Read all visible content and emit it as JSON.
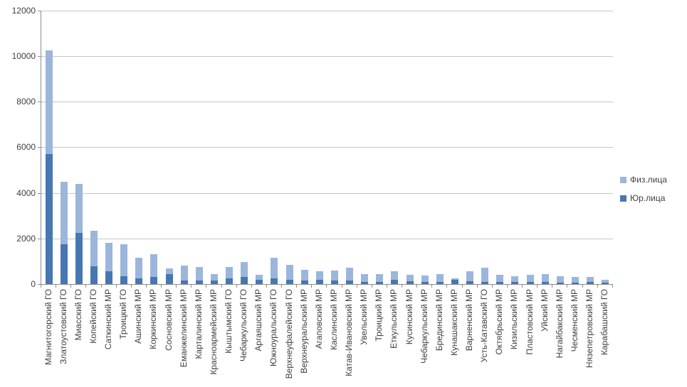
{
  "chart_data": {
    "type": "bar",
    "stacked": true,
    "title": "",
    "xlabel": "",
    "ylabel": "",
    "ylim": [
      0,
      12000
    ],
    "yticks": [
      0,
      2000,
      4000,
      6000,
      8000,
      10000,
      12000
    ],
    "grid": true,
    "legend_position": "right",
    "categories": [
      "Магнитогорский ГО",
      "Златоустовский ГО",
      "Миасский ГО",
      "Копейский ГО",
      "Саткинский МР",
      "Троицкий ГО",
      "Ашинский МР",
      "Коркинский МР",
      "Сосновский МР",
      "Еманжелинский МР",
      "Карталинский МР",
      "Красноармейский МР",
      "Кыштымский ГО",
      "Чебаркульский ГО",
      "Аргаяшский МР",
      "Южноуральский ГО",
      "Верхнеуфалейский ГО",
      "Верхнеуральский МР",
      "Агаповский МР",
      "Каслинский МР",
      "Катав-Ивановский МР",
      "Увельский МР",
      "Троицкий МР",
      "Еткульский МР",
      "Кусинский МР",
      "Чебаркульский МР",
      "Брединский МР",
      "Кунашакский МР",
      "Варненский МР",
      "Усть-Катавский ГО",
      "Октябрьский МР",
      "Кизильский МР",
      "Пластовский МР",
      "Уйский МР",
      "Нагайбакский МР",
      "Чесменский МР",
      "Нязепетровский МР",
      "Карабашский ГО"
    ],
    "series": [
      {
        "name": "Юр.лица",
        "color": "#4677B2",
        "values": [
          5700,
          1750,
          2250,
          780,
          550,
          350,
          250,
          300,
          450,
          150,
          150,
          150,
          250,
          300,
          200,
          250,
          200,
          150,
          190,
          150,
          160,
          100,
          100,
          200,
          130,
          100,
          100,
          200,
          130,
          100,
          80,
          100,
          100,
          100,
          60,
          60,
          90,
          50
        ]
      },
      {
        "name": "Физ.лица",
        "color": "#9CB6DB",
        "values": [
          4550,
          2750,
          2150,
          1570,
          1250,
          1400,
          900,
          1000,
          250,
          650,
          600,
          300,
          500,
          680,
          200,
          900,
          650,
          480,
          360,
          450,
          560,
          340,
          330,
          350,
          290,
          280,
          330,
          50,
          420,
          620,
          320,
          230,
          300,
          330,
          290,
          240,
          210,
          130
        ]
      }
    ]
  },
  "legend": {
    "items": [
      {
        "label": "Физ.лица",
        "color": "#9CB6DB"
      },
      {
        "label": "Юр.лица",
        "color": "#4677B2"
      }
    ]
  },
  "colors": {
    "gridline": "#c6c6c6",
    "axis": "#8c8c8c",
    "text": "#404040",
    "background": "#ffffff"
  }
}
